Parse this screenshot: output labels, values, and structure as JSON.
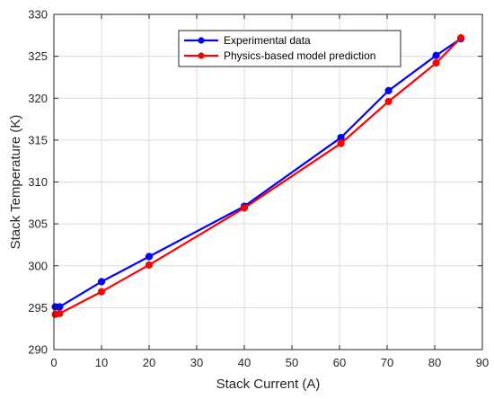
{
  "chart_data": {
    "type": "line",
    "title": "",
    "xlabel": "Stack Current (A)",
    "ylabel": "Stack Temperature (K)",
    "xlim": [
      0,
      90
    ],
    "ylim": [
      290,
      330
    ],
    "xticks": [
      0,
      10,
      20,
      30,
      40,
      50,
      60,
      70,
      80,
      90
    ],
    "yticks": [
      290,
      295,
      300,
      305,
      310,
      315,
      320,
      325,
      330
    ],
    "grid": true,
    "legend_position": "top-right",
    "series": [
      {
        "name": "Experimental data",
        "color": "#0000ff",
        "x": [
          0.3,
          1.2,
          10,
          20,
          40,
          60.3,
          70.3,
          80.3,
          85.5
        ],
        "y": [
          295.1,
          295.1,
          298.1,
          301.1,
          307.1,
          315.3,
          320.9,
          325.1,
          327.1
        ]
      },
      {
        "name": "Physics-based model prediction",
        "color": "#ff0000",
        "x": [
          0.3,
          1.2,
          10,
          20,
          40,
          60.3,
          70.3,
          80.3,
          85.5
        ],
        "y": [
          294.2,
          294.3,
          296.9,
          300.1,
          306.9,
          314.6,
          319.6,
          324.2,
          327.2
        ]
      }
    ]
  }
}
